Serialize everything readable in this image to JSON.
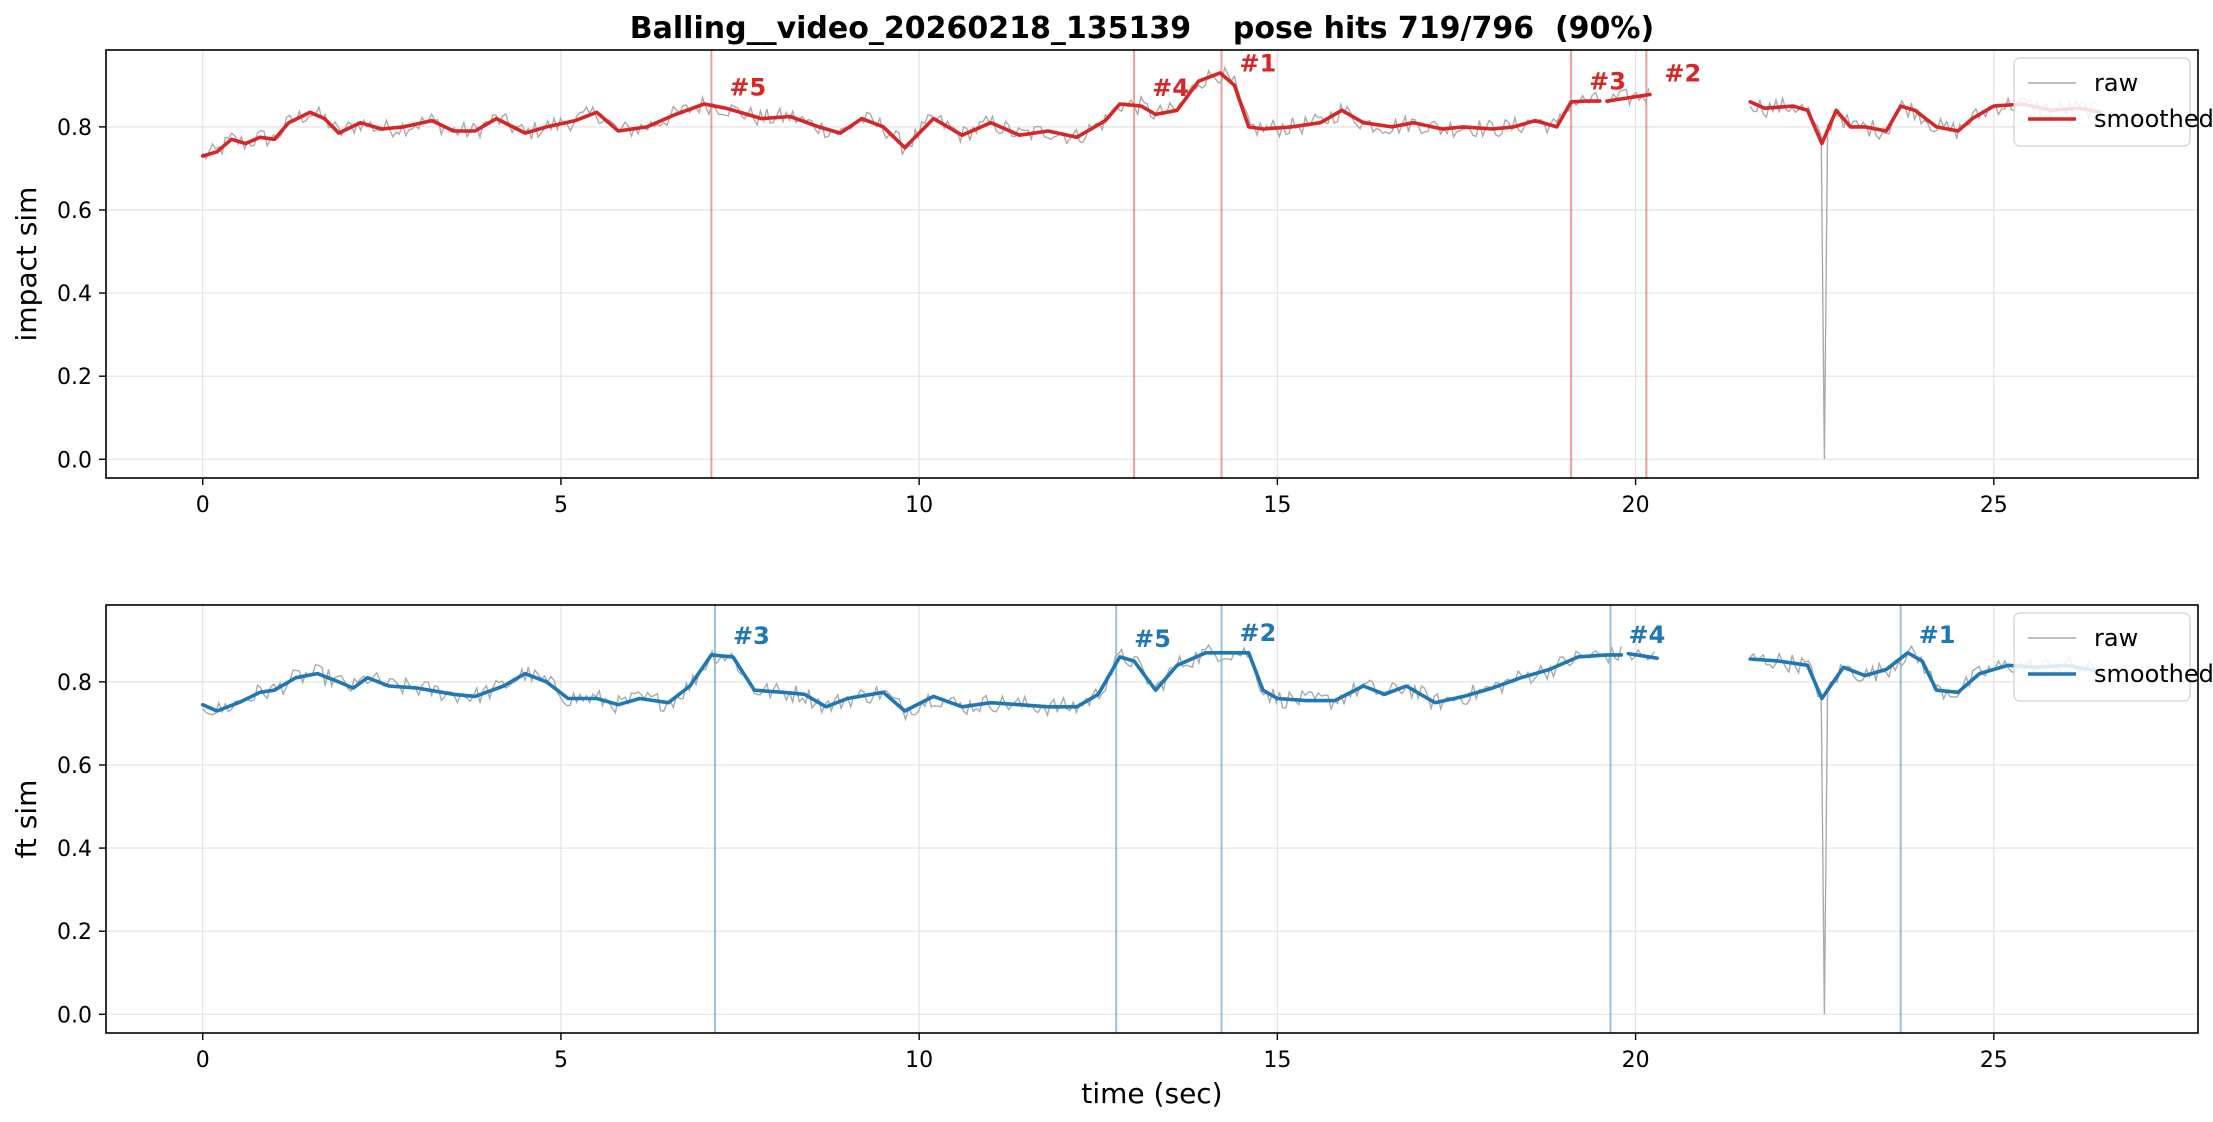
{
  "chart_data": {
    "title": "Balling__video_20260218_135139    pose hits 719/796  (90%)",
    "xlabel": "time (sec)",
    "panels": [
      {
        "type": "line",
        "ylabel": "impact sim",
        "color": "#d62728",
        "raw_color": "#aaaaaa",
        "xlim": [
          -1.35,
          27.85
        ],
        "ylim": [
          -0.045,
          0.985
        ],
        "xticks": [
          "0",
          "5",
          "10",
          "15",
          "20",
          "25"
        ],
        "yticks": [
          "0.0",
          "0.2",
          "0.4",
          "0.6",
          "0.8"
        ],
        "grid": true,
        "legend": {
          "position": "top-right",
          "labels": [
            "raw",
            "smoothed"
          ]
        },
        "peaks": [
          {
            "label": "#5",
            "x": 7.1
          },
          {
            "label": "#4",
            "x": 13.0
          },
          {
            "label": "#1",
            "x": 14.22
          },
          {
            "label": "#3",
            "x": 19.1
          },
          {
            "label": "#2",
            "x": 20.15
          }
        ],
        "series": [
          {
            "name": "smoothed",
            "segments": [
              [
                [
                  0,
                  0.73
                ],
                [
                  0.2,
                  0.74
                ],
                [
                  0.4,
                  0.77
                ],
                [
                  0.6,
                  0.76
                ],
                [
                  0.8,
                  0.775
                ],
                [
                  1.0,
                  0.77
                ],
                [
                  1.2,
                  0.81
                ],
                [
                  1.5,
                  0.835
                ],
                [
                  1.7,
                  0.82
                ],
                [
                  1.9,
                  0.785
                ],
                [
                  2.2,
                  0.81
                ],
                [
                  2.5,
                  0.795
                ],
                [
                  2.8,
                  0.8
                ],
                [
                  3.2,
                  0.815
                ],
                [
                  3.5,
                  0.79
                ],
                [
                  3.8,
                  0.79
                ],
                [
                  4.1,
                  0.82
                ],
                [
                  4.5,
                  0.785
                ],
                [
                  4.8,
                  0.8
                ],
                [
                  5.2,
                  0.815
                ],
                [
                  5.5,
                  0.835
                ],
                [
                  5.8,
                  0.79
                ],
                [
                  6.2,
                  0.8
                ],
                [
                  6.6,
                  0.83
                ],
                [
                  7.0,
                  0.855
                ],
                [
                  7.3,
                  0.845
                ],
                [
                  7.6,
                  0.83
                ],
                [
                  7.8,
                  0.82
                ],
                [
                  8.2,
                  0.825
                ],
                [
                  8.6,
                  0.8
                ],
                [
                  8.9,
                  0.785
                ],
                [
                  9.2,
                  0.82
                ],
                [
                  9.5,
                  0.8
                ],
                [
                  9.8,
                  0.75
                ],
                [
                  10.2,
                  0.82
                ],
                [
                  10.6,
                  0.78
                ],
                [
                  11.0,
                  0.81
                ],
                [
                  11.4,
                  0.78
                ],
                [
                  11.8,
                  0.79
                ],
                [
                  12.2,
                  0.775
                ],
                [
                  12.6,
                  0.815
                ],
                [
                  12.8,
                  0.855
                ],
                [
                  13.1,
                  0.85
                ],
                [
                  13.3,
                  0.83
                ],
                [
                  13.6,
                  0.84
                ],
                [
                  13.9,
                  0.91
                ],
                [
                  14.2,
                  0.93
                ],
                [
                  14.4,
                  0.9
                ],
                [
                  14.6,
                  0.8
                ],
                [
                  14.8,
                  0.795
                ],
                [
                  15.2,
                  0.8
                ],
                [
                  15.6,
                  0.81
                ],
                [
                  15.9,
                  0.84
                ],
                [
                  16.2,
                  0.81
                ],
                [
                  16.6,
                  0.8
                ],
                [
                  16.9,
                  0.81
                ],
                [
                  17.3,
                  0.795
                ],
                [
                  17.6,
                  0.8
                ],
                [
                  18.0,
                  0.795
                ],
                [
                  18.3,
                  0.8
                ],
                [
                  18.6,
                  0.815
                ],
                [
                  18.9,
                  0.8
                ],
                [
                  19.1,
                  0.86
                ],
                [
                  19.3,
                  0.862
                ],
                [
                  19.5,
                  0.862
                ]
              ],
              [
                [
                  19.6,
                  0.862
                ],
                [
                  20.2,
                  0.878
                ]
              ],
              [
                [
                  21.6,
                  0.86
                ],
                [
                  21.8,
                  0.845
                ],
                [
                  22.2,
                  0.85
                ],
                [
                  22.4,
                  0.84
                ],
                [
                  22.6,
                  0.76
                ],
                [
                  22.8,
                  0.84
                ],
                [
                  23.0,
                  0.8
                ],
                [
                  23.2,
                  0.8
                ],
                [
                  23.5,
                  0.79
                ],
                [
                  23.7,
                  0.85
                ],
                [
                  23.9,
                  0.84
                ],
                [
                  24.2,
                  0.8
                ],
                [
                  24.5,
                  0.79
                ],
                [
                  24.7,
                  0.82
                ],
                [
                  25.0,
                  0.85
                ],
                [
                  25.4,
                  0.855
                ],
                [
                  25.8,
                  0.84
                ],
                [
                  26.2,
                  0.845
                ],
                [
                  26.5,
                  0.835
                ]
              ]
            ]
          }
        ]
      },
      {
        "type": "line",
        "ylabel": "ft sim",
        "color": "#1f77b4",
        "raw_color": "#aaaaaa",
        "xlim": [
          -1.35,
          27.85
        ],
        "ylim": [
          -0.045,
          0.985
        ],
        "xticks": [
          "0",
          "5",
          "10",
          "15",
          "20",
          "25"
        ],
        "yticks": [
          "0.0",
          "0.2",
          "0.4",
          "0.6",
          "0.8"
        ],
        "grid": true,
        "legend": {
          "position": "top-right",
          "labels": [
            "raw",
            "smoothed"
          ]
        },
        "peaks": [
          {
            "label": "#3",
            "x": 7.15
          },
          {
            "label": "#5",
            "x": 12.75
          },
          {
            "label": "#2",
            "x": 14.22
          },
          {
            "label": "#4",
            "x": 19.65
          },
          {
            "label": "#1",
            "x": 23.7
          }
        ],
        "series": [
          {
            "name": "smoothed",
            "segments": [
              [
                [
                  0,
                  0.745
                ],
                [
                  0.2,
                  0.73
                ],
                [
                  0.5,
                  0.75
                ],
                [
                  0.8,
                  0.775
                ],
                [
                  1.0,
                  0.78
                ],
                [
                  1.3,
                  0.81
                ],
                [
                  1.6,
                  0.82
                ],
                [
                  1.9,
                  0.8
                ],
                [
                  2.1,
                  0.785
                ],
                [
                  2.3,
                  0.81
                ],
                [
                  2.6,
                  0.79
                ],
                [
                  3.0,
                  0.785
                ],
                [
                  3.5,
                  0.77
                ],
                [
                  3.8,
                  0.765
                ],
                [
                  4.2,
                  0.79
                ],
                [
                  4.5,
                  0.82
                ],
                [
                  4.8,
                  0.8
                ],
                [
                  5.1,
                  0.76
                ],
                [
                  5.5,
                  0.76
                ],
                [
                  5.8,
                  0.745
                ],
                [
                  6.1,
                  0.76
                ],
                [
                  6.5,
                  0.75
                ],
                [
                  6.8,
                  0.79
                ],
                [
                  7.1,
                  0.865
                ],
                [
                  7.4,
                  0.86
                ],
                [
                  7.7,
                  0.78
                ],
                [
                  8.1,
                  0.775
                ],
                [
                  8.4,
                  0.77
                ],
                [
                  8.7,
                  0.74
                ],
                [
                  9.0,
                  0.76
                ],
                [
                  9.5,
                  0.775
                ],
                [
                  9.8,
                  0.73
                ],
                [
                  10.2,
                  0.765
                ],
                [
                  10.6,
                  0.74
                ],
                [
                  11.0,
                  0.75
                ],
                [
                  11.4,
                  0.745
                ],
                [
                  11.8,
                  0.74
                ],
                [
                  12.2,
                  0.74
                ],
                [
                  12.5,
                  0.77
                ],
                [
                  12.8,
                  0.86
                ],
                [
                  13.0,
                  0.85
                ],
                [
                  13.3,
                  0.78
                ],
                [
                  13.6,
                  0.84
                ],
                [
                  14.0,
                  0.87
                ],
                [
                  14.3,
                  0.87
                ],
                [
                  14.6,
                  0.87
                ],
                [
                  14.8,
                  0.78
                ],
                [
                  15.0,
                  0.76
                ],
                [
                  15.4,
                  0.755
                ],
                [
                  15.8,
                  0.755
                ],
                [
                  16.2,
                  0.79
                ],
                [
                  16.5,
                  0.77
                ],
                [
                  16.8,
                  0.79
                ],
                [
                  17.2,
                  0.75
                ],
                [
                  17.6,
                  0.765
                ],
                [
                  18.0,
                  0.785
                ],
                [
                  18.4,
                  0.81
                ],
                [
                  18.8,
                  0.83
                ],
                [
                  19.2,
                  0.86
                ],
                [
                  19.6,
                  0.865
                ],
                [
                  19.8,
                  0.865
                ]
              ],
              [
                [
                  19.9,
                  0.868
                ],
                [
                  20.3,
                  0.857
                ]
              ],
              [
                [
                  21.6,
                  0.855
                ],
                [
                  22.0,
                  0.85
                ],
                [
                  22.4,
                  0.84
                ],
                [
                  22.6,
                  0.76
                ],
                [
                  22.9,
                  0.835
                ],
                [
                  23.2,
                  0.815
                ],
                [
                  23.5,
                  0.83
                ],
                [
                  23.8,
                  0.87
                ],
                [
                  24.0,
                  0.85
                ],
                [
                  24.2,
                  0.78
                ],
                [
                  24.5,
                  0.775
                ],
                [
                  24.8,
                  0.82
                ],
                [
                  25.2,
                  0.84
                ],
                [
                  25.6,
                  0.835
                ],
                [
                  26.0,
                  0.84
                ],
                [
                  26.5,
                  0.825
                ]
              ]
            ]
          }
        ]
      }
    ]
  }
}
